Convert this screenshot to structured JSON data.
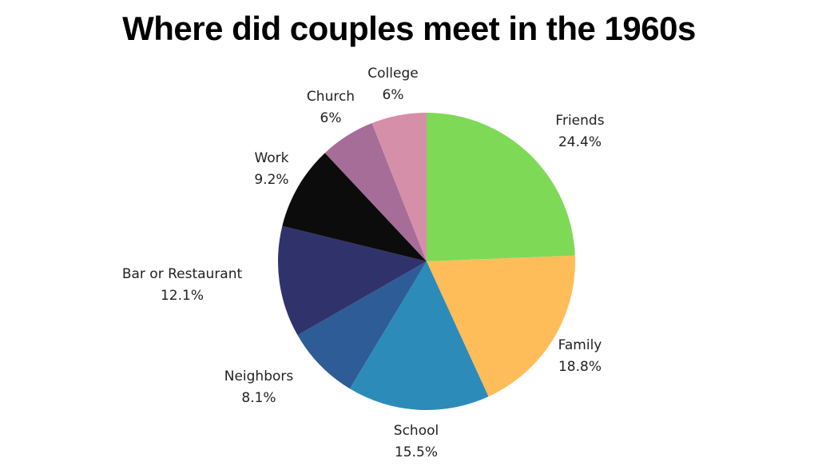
{
  "chart_data": {
    "type": "pie",
    "title": "Where did couples meet in the 1960s",
    "start": "top",
    "direction": "clockwise",
    "slices": [
      {
        "label": "Friends",
        "value": 24.4,
        "display": "24.4%",
        "color": "#7ed957"
      },
      {
        "label": "Family",
        "value": 18.8,
        "display": "18.8%",
        "color": "#ffbd59"
      },
      {
        "label": "School",
        "value": 15.5,
        "display": "15.5%",
        "color": "#2d8bba"
      },
      {
        "label": "Neighbors",
        "value": 8.1,
        "display": "8.1%",
        "color": "#2e5c97"
      },
      {
        "label": "Bar or Restaurant",
        "value": 12.1,
        "display": "12.1%",
        "color": "#30336b"
      },
      {
        "label": "Work",
        "value": 9.2,
        "display": "9.2%",
        "color": "#0c0c0c"
      },
      {
        "label": "Church",
        "value": 6,
        "display": "6%",
        "color": "#a66d99"
      },
      {
        "label": "College",
        "value": 6,
        "display": "6%",
        "color": "#d68fa8"
      }
    ]
  }
}
